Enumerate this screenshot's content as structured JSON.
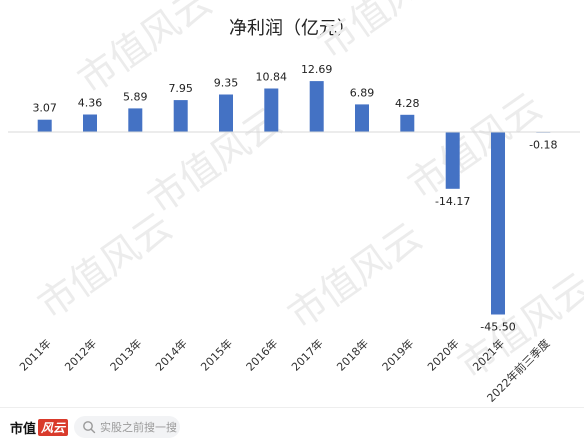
{
  "chart_data": {
    "type": "bar",
    "title": "净利润（亿元）",
    "categories": [
      "2011年",
      "2012年",
      "2013年",
      "2014年",
      "2015年",
      "2016年",
      "2017年",
      "2018年",
      "2019年",
      "2020年",
      "2021年",
      "2022年前三季度"
    ],
    "values": [
      3.07,
      4.36,
      5.89,
      7.95,
      9.35,
      10.84,
      12.69,
      6.89,
      4.28,
      -14.17,
      -45.5,
      -0.18
    ],
    "value_labels": [
      "3.07",
      "4.36",
      "5.89",
      "7.95",
      "9.35",
      "10.84",
      "12.69",
      "6.89",
      "4.28",
      "-14.17",
      "-45.50",
      "-0.18"
    ],
    "bar_color": "#4472c4",
    "legend": "none",
    "grid": false
  },
  "watermark": {
    "text": "市值风云",
    "color": "#ececec"
  },
  "footer": {
    "brand_text": "市值",
    "brand_badge": "风云",
    "search_text": "实股之前搜一搜",
    "search_icon": "search-icon"
  }
}
